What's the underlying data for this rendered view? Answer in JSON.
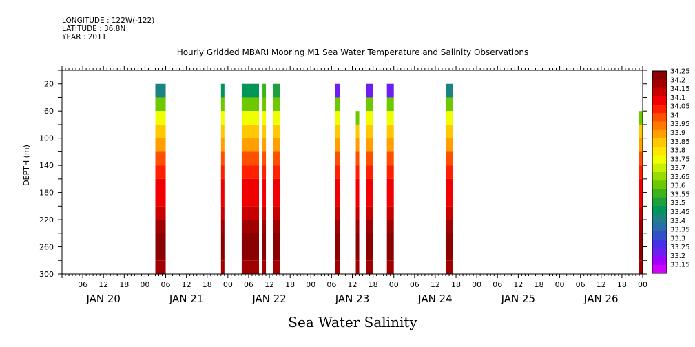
{
  "header": {
    "longitude": "LONGITUDE : 122W(-122)",
    "latitude": "LATITUDE : 36.8N",
    "year": "YEAR : 2011"
  },
  "chart_data": {
    "type": "heatmap",
    "title": "Hourly Gridded MBARI Mooring M1 Sea Water Temperature and Salinity Observations",
    "subtitle": "Sea Water Salinity",
    "ylabel": "DEPTH (m)",
    "xlabel": "",
    "y_range": [
      300,
      0
    ],
    "y_ticks": [
      20,
      60,
      100,
      140,
      180,
      220,
      260,
      300
    ],
    "x_hour_ticks": [
      "06",
      "12",
      "18",
      "00",
      "06",
      "12",
      "18",
      "00",
      "06",
      "12",
      "18",
      "00",
      "06",
      "12",
      "18",
      "00",
      "06",
      "12",
      "18",
      "00",
      "06",
      "12",
      "18",
      "00",
      "06",
      "12",
      "18",
      "00"
    ],
    "x_day_labels": [
      "JAN 20",
      "JAN 21",
      "JAN 22",
      "JAN 23",
      "JAN 24",
      "JAN 25",
      "JAN 26"
    ],
    "x_range_hours": [
      0,
      168
    ],
    "grid": false,
    "legend": "right colorbar",
    "colorbar": {
      "levels": [
        "34.25",
        "34.2",
        "34.15",
        "34.1",
        "34.05",
        "34",
        "33.95",
        "33.9",
        "33.85",
        "33.8",
        "33.75",
        "33.7",
        "33.65",
        "33.6",
        "33.55",
        "33.5",
        "33.45",
        "33.4",
        "33.35",
        "33.3",
        "33.25",
        "33.2",
        "33.15"
      ],
      "colors": [
        "#8b0000",
        "#a00000",
        "#c80000",
        "#f00000",
        "#ff2000",
        "#ff5000",
        "#ff7800",
        "#ffa000",
        "#ffc800",
        "#ffe600",
        "#f0ff00",
        "#c8f000",
        "#96dc00",
        "#6ec800",
        "#3cb41e",
        "#1ea03c",
        "#00965a",
        "#1e8282",
        "#286eaa",
        "#3250c8",
        "#4632e6",
        "#6e1ef0",
        "#a000ff",
        "#d200ff"
      ]
    },
    "depth_profile_bins": [
      {
        "depth_top": 20,
        "depth_bottom": 40,
        "salinity": 33.45
      },
      {
        "depth_top": 40,
        "depth_bottom": 60,
        "salinity": 33.6
      },
      {
        "depth_top": 60,
        "depth_bottom": 80,
        "salinity": 33.75
      },
      {
        "depth_top": 80,
        "depth_bottom": 100,
        "salinity": 33.85
      },
      {
        "depth_top": 100,
        "depth_bottom": 120,
        "salinity": 33.9
      },
      {
        "depth_top": 120,
        "depth_bottom": 140,
        "salinity": 34.0
      },
      {
        "depth_top": 140,
        "depth_bottom": 160,
        "salinity": 34.05
      },
      {
        "depth_top": 160,
        "depth_bottom": 200,
        "salinity": 34.1
      },
      {
        "depth_top": 200,
        "depth_bottom": 220,
        "salinity": 34.15
      },
      {
        "depth_top": 220,
        "depth_bottom": 240,
        "salinity": 34.2
      },
      {
        "depth_top": 240,
        "depth_bottom": 280,
        "salinity": 34.25
      },
      {
        "depth_top": 280,
        "depth_bottom": 300,
        "salinity": 34.2
      }
    ],
    "data_segments": [
      {
        "start_hour": 27,
        "end_hour": 30,
        "top_salinity": 33.4
      },
      {
        "start_hour": 46,
        "end_hour": 47,
        "top_salinity": 33.45
      },
      {
        "start_hour": 52,
        "end_hour": 57,
        "top_salinity": 33.45
      },
      {
        "start_hour": 58,
        "end_hour": 59,
        "top_salinity": 33.55
      },
      {
        "start_hour": 61,
        "end_hour": 63,
        "top_salinity": 33.5
      },
      {
        "start_hour": 79,
        "end_hour": 80.5,
        "top_salinity": 33.2
      },
      {
        "start_hour": 85,
        "end_hour": 86,
        "top_depth": 60,
        "top_salinity": 33.6
      },
      {
        "start_hour": 88,
        "end_hour": 90,
        "top_salinity": 33.2
      },
      {
        "start_hour": 94,
        "end_hour": 96,
        "top_salinity": 33.2
      },
      {
        "start_hour": 111,
        "end_hour": 113,
        "top_salinity": 33.4
      },
      {
        "start_hour": 167,
        "end_hour": 168,
        "top_depth": 60,
        "top_salinity": 33.6
      }
    ]
  }
}
